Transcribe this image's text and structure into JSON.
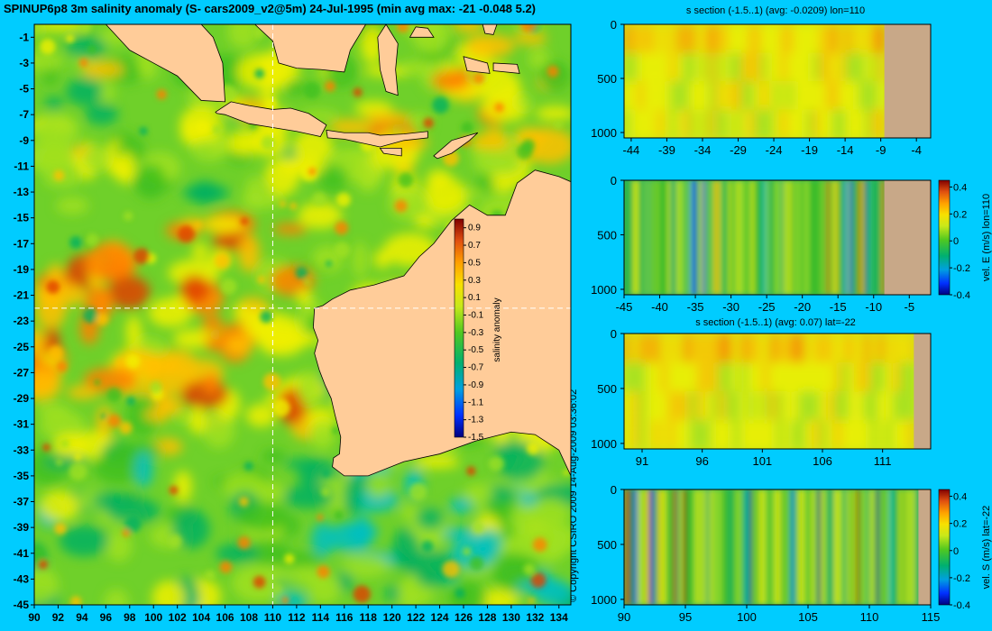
{
  "title": "SPINUP6p8 3m salinity anomaly (S- cars2009_v2@5m) 24-Jul-1995 (min avg max: -21 -0.048 5.2)",
  "copyright": "© Copyright CSIRO 2009  14-Aug-2009 03:36:02",
  "colors": {
    "background": "#00ccff",
    "land": "#ffcc99",
    "section_land": "#c8a888",
    "colormap": [
      "#00007f",
      "#0000ff",
      "#0080ff",
      "#00c0c0",
      "#00b060",
      "#40c020",
      "#a0e020",
      "#f0f000",
      "#ffc000",
      "#ff8000",
      "#e04000",
      "#800000"
    ]
  },
  "chart_data": [
    {
      "type": "heatmap",
      "name": "map",
      "variable": "salinity anomaly",
      "xlim": [
        90,
        135
      ],
      "ylim": [
        -45,
        0
      ],
      "xticks": [
        "90",
        "92",
        "94",
        "96",
        "98",
        "100",
        "102",
        "104",
        "106",
        "108",
        "110",
        "112",
        "114",
        "116",
        "118",
        "120",
        "122",
        "124",
        "126",
        "128",
        "130",
        "132",
        "134"
      ],
      "yticks": [
        "-1",
        "-3",
        "-5",
        "-7",
        "-9",
        "-11",
        "-13",
        "-15",
        "-17",
        "-19",
        "-21",
        "-23",
        "-25",
        "-27",
        "-29",
        "-31",
        "-33",
        "-35",
        "-37",
        "-39",
        "-41",
        "-43",
        "-45"
      ],
      "section_lon": 110,
      "section_lat": -22,
      "colorbar": {
        "label": "salinity anomaly",
        "range": [
          -1.5,
          1.0
        ],
        "ticks": [
          "0.9",
          "0.7",
          "0.5",
          "0.3",
          "0.1",
          "-0.1",
          "-0.3",
          "-0.5",
          "-0.7",
          "-0.9",
          "-1.1",
          "-1.3",
          "-1.5"
        ]
      },
      "summary": {
        "min": -21,
        "avg": -0.048,
        "max": 5.2
      }
    },
    {
      "type": "heatmap",
      "name": "s-section-lon110",
      "title": "s section (-1.5..1) (avg: -0.0209) lon=110",
      "xlim": [
        -45,
        -2
      ],
      "ylim": [
        1050,
        0
      ],
      "xticks": [
        "-44",
        "-39",
        "-34",
        "-29",
        "-24",
        "-19",
        "-14",
        "-9",
        "-4"
      ],
      "yticks": [
        "0",
        "500",
        "1000"
      ]
    },
    {
      "type": "heatmap",
      "name": "vel-e-lon110",
      "title": "",
      "xlim": [
        -45,
        -2
      ],
      "ylim": [
        1050,
        0
      ],
      "xticks": [
        "-45",
        "-40",
        "-35",
        "-30",
        "-25",
        "-20",
        "-15",
        "-10",
        "-5"
      ],
      "yticks": [
        "0",
        "500",
        "1000"
      ],
      "colorbar": {
        "label": "vel. E (m/s) lon=110",
        "range": [
          -0.4,
          0.45
        ],
        "ticks": [
          "0.4",
          "0.2",
          "0",
          "-0.2",
          "-0.4"
        ]
      }
    },
    {
      "type": "heatmap",
      "name": "s-section-lat-22",
      "title": "s section (-1.5..1) (avg: 0.07) lat=-22",
      "xlim": [
        89.5,
        115
      ],
      "ylim": [
        1050,
        0
      ],
      "xticks": [
        "91",
        "96",
        "101",
        "106",
        "111"
      ],
      "yticks": [
        "0",
        "500",
        "1000"
      ]
    },
    {
      "type": "heatmap",
      "name": "vel-s-lat-22",
      "title": "",
      "xlim": [
        90,
        115
      ],
      "ylim": [
        1050,
        0
      ],
      "xticks": [
        "90",
        "95",
        "100",
        "105",
        "110",
        "115"
      ],
      "yticks": [
        "0",
        "500",
        "1000"
      ],
      "colorbar": {
        "label": "vel. S (m/s) lat=-22",
        "range": [
          -0.4,
          0.45
        ],
        "ticks": [
          "0.4",
          "0.2",
          "0",
          "-0.2",
          "-0.4"
        ]
      }
    }
  ]
}
